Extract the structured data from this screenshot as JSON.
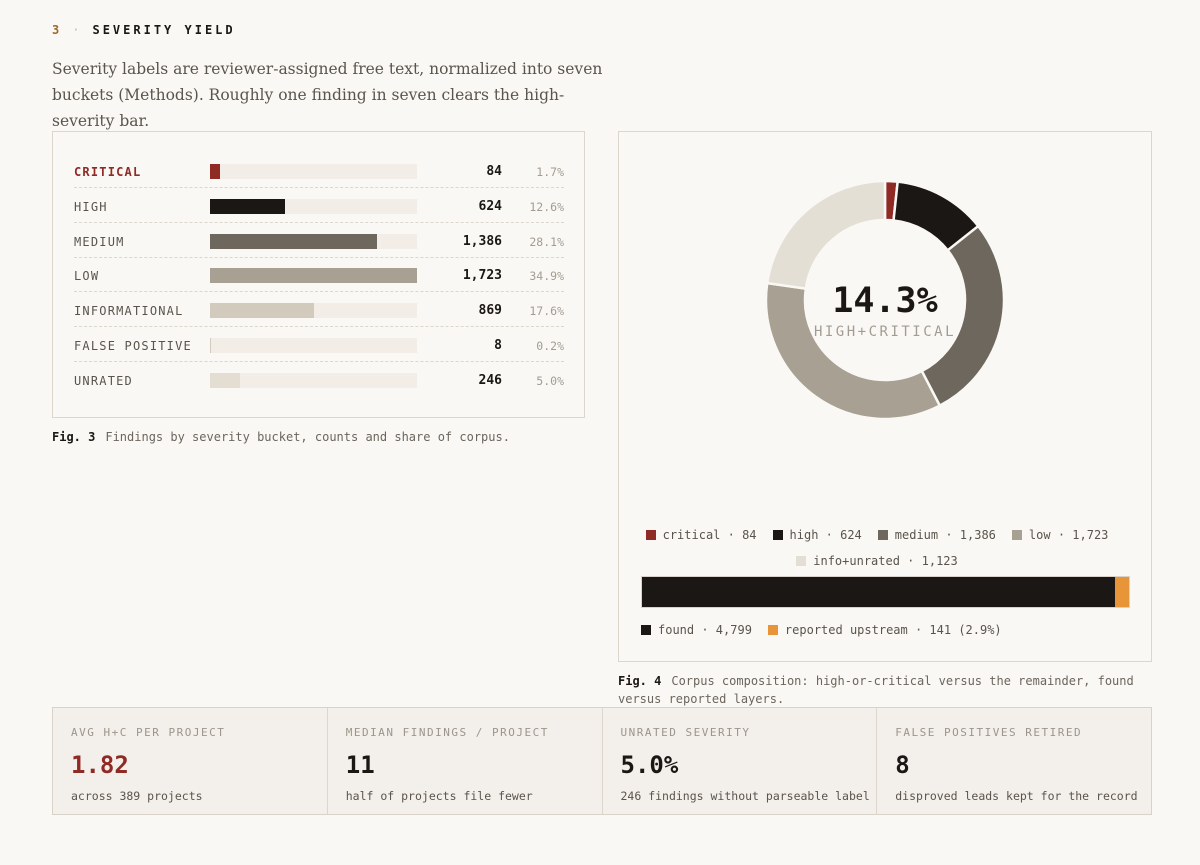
{
  "section": {
    "number": "3",
    "separator": "·",
    "title": "SEVERITY YIELD"
  },
  "intro": "Severity labels are reviewer-assigned free text, normalized into seven buckets (Methods). Roughly one finding in seven clears the high-severity bar.",
  "chart_data": [
    {
      "type": "bar",
      "orientation": "horizontal",
      "categories": [
        "CRITICAL",
        "HIGH",
        "MEDIUM",
        "LOW",
        "INFORMATIONAL",
        "FALSE POSITIVE",
        "UNRATED"
      ],
      "values": [
        84,
        624,
        1386,
        1723,
        869,
        8,
        246
      ],
      "value_labels": [
        "84",
        "624",
        "1,386",
        "1,723",
        "869",
        "8",
        "246"
      ],
      "share_labels": [
        "1.7%",
        "12.6%",
        "28.1%",
        "34.9%",
        "17.6%",
        "0.2%",
        "5.0%"
      ],
      "colors": [
        "#8f2a24",
        "#1a1714",
        "#6e675d",
        "#a8a093",
        "#d2cabd",
        "#d2cabd",
        "#e4ddd2"
      ],
      "xlim": [
        0,
        1723
      ],
      "caption_label": "Fig. 3",
      "caption": "Findings by severity bucket, counts and share of corpus."
    },
    {
      "type": "pie",
      "donut": true,
      "center_value": "14.3%",
      "center_label": "HIGH+CRITICAL",
      "slices": [
        {
          "name": "critical",
          "value": 84,
          "color": "#8f2a24",
          "legend": "critical · 84"
        },
        {
          "name": "high",
          "value": 624,
          "color": "#1a1714",
          "legend": "high · 624"
        },
        {
          "name": "medium",
          "value": 1386,
          "color": "#6e675d",
          "legend": "medium · 1,386"
        },
        {
          "name": "low",
          "value": 1723,
          "color": "#a8a093",
          "legend": "low · 1,723"
        },
        {
          "name": "info+unrated",
          "value": 1123,
          "color": "#e4dfd5",
          "legend": "info+unrated · 1,123"
        }
      ],
      "caption_label": "Fig. 4",
      "caption": "Corpus composition: high-or-critical versus the remainder, found versus reported layers."
    },
    {
      "type": "bar",
      "stacked": true,
      "series": [
        {
          "name": "found",
          "value": 4799,
          "color": "#1a1714",
          "legend": "found · 4,799"
        },
        {
          "name": "reported upstream",
          "value": 141,
          "color": "#e8953a",
          "legend": "reported upstream · 141 (2.9%)"
        }
      ]
    }
  ],
  "stats": [
    {
      "label": "AVG H+C PER PROJECT",
      "value": "1.82",
      "sub": "across 389 projects",
      "accent": true
    },
    {
      "label": "MEDIAN FINDINGS / PROJECT",
      "value": "11",
      "sub": "half of projects file fewer",
      "accent": false
    },
    {
      "label": "UNRATED SEVERITY",
      "value": "5.0%",
      "sub": "246 findings without parseable label",
      "accent": false
    },
    {
      "label": "FALSE POSITIVES RETIRED",
      "value": "8",
      "sub": "disproved leads kept for the record",
      "accent": false
    }
  ]
}
